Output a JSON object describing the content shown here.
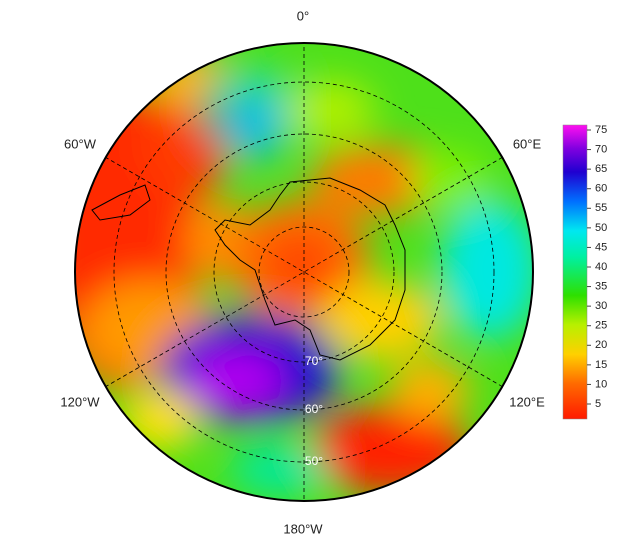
{
  "longitude_labels": [
    "0°",
    "60°E",
    "120°E",
    "180°W",
    "120°W",
    "60°W"
  ],
  "latitude_labels": [
    "70°",
    "60°",
    "50°"
  ],
  "colorbar": {
    "ticks": [
      5,
      10,
      15,
      20,
      25,
      30,
      35,
      40,
      45,
      50,
      55,
      60,
      65,
      70,
      75
    ]
  }
}
